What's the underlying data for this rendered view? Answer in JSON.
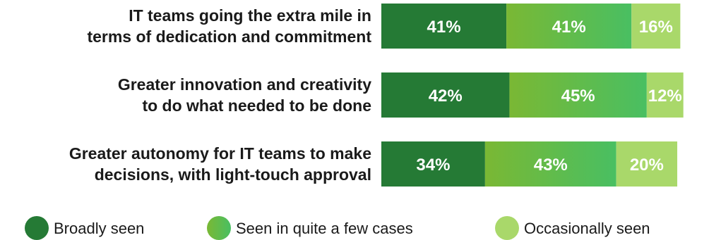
{
  "chart_data": {
    "type": "bar",
    "orientation": "horizontal",
    "stacked": true,
    "categories": [
      [
        "IT teams going the extra mile in",
        "terms of dedication and commitment"
      ],
      [
        "Greater innovation and creativity",
        "to do what needed to be done"
      ],
      [
        "Greater autonomy for IT teams to make",
        "decisions, with light-touch approval"
      ]
    ],
    "series": [
      {
        "name": "Broadly seen",
        "values": [
          41,
          42,
          34
        ],
        "color": "#257a35",
        "gradient_to": "#257a35"
      },
      {
        "name": "Seen in quite a few cases",
        "values": [
          41,
          45,
          43
        ],
        "color": "#7ab834",
        "gradient_to": "#49bf62"
      },
      {
        "name": "Occasionally seen",
        "values": [
          16,
          12,
          20
        ],
        "color": "#a9d86a",
        "gradient_to": "#a9d86a"
      }
    ],
    "value_suffix": "%",
    "legend_position": "bottom",
    "grid": false
  }
}
